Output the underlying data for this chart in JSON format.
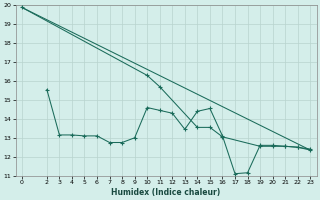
{
  "xlabel": "Humidex (Indice chaleur)",
  "bg_color": "#d4eeea",
  "grid_color": "#b8d4ce",
  "line_color": "#1a6b5a",
  "xlim": [
    -0.5,
    23.5
  ],
  "ylim": [
    11,
    20
  ],
  "yticks": [
    11,
    12,
    13,
    14,
    15,
    16,
    17,
    18,
    19,
    20
  ],
  "xticks": [
    0,
    2,
    3,
    4,
    5,
    6,
    7,
    8,
    9,
    10,
    11,
    12,
    13,
    14,
    15,
    16,
    17,
    18,
    19,
    20,
    21,
    22,
    23
  ],
  "series1_x": [
    0,
    10,
    11,
    14,
    15,
    16,
    19,
    20,
    21,
    22,
    23
  ],
  "series1_y": [
    19.9,
    16.3,
    15.7,
    13.55,
    13.55,
    13.05,
    12.55,
    12.55,
    12.55,
    12.5,
    12.4
  ],
  "series2_x": [
    2,
    3,
    4,
    5,
    6,
    7,
    8,
    9,
    10,
    11,
    12,
    13,
    14,
    15,
    16,
    17,
    18,
    19,
    20,
    21,
    22,
    23
  ],
  "series2_y": [
    15.55,
    13.15,
    13.15,
    13.1,
    13.1,
    12.75,
    12.75,
    13.0,
    14.6,
    14.45,
    14.3,
    13.45,
    14.4,
    14.55,
    13.1,
    11.1,
    11.15,
    12.6,
    12.6,
    12.55,
    12.5,
    12.35
  ],
  "series3_x": [
    0,
    23
  ],
  "series3_y": [
    19.9,
    12.35
  ]
}
